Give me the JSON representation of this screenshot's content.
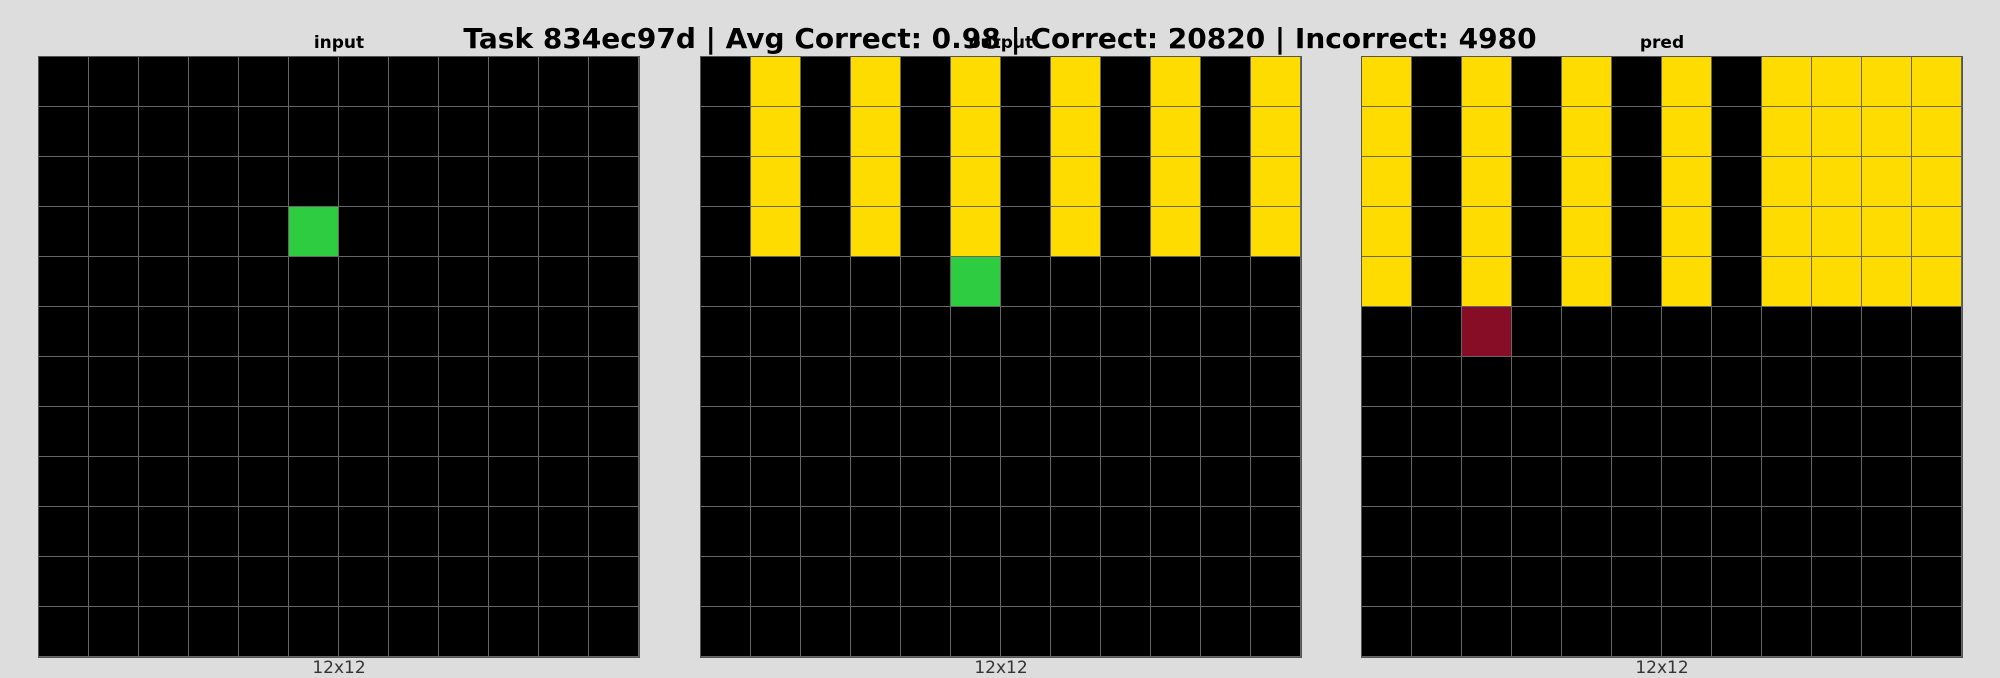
{
  "title": "Task 834ec97d | Avg Correct: 0.98 | Correct: 20820 | Incorrect: 4980",
  "palette": {
    "0": "#000000",
    "3": "#2ECC40",
    "4": "#FFDC00",
    "9": "#870C25"
  },
  "panels": [
    {
      "title": "input",
      "caption": "12x12",
      "grid": [
        [
          0,
          0,
          0,
          0,
          0,
          0,
          0,
          0,
          0,
          0,
          0,
          0
        ],
        [
          0,
          0,
          0,
          0,
          0,
          0,
          0,
          0,
          0,
          0,
          0,
          0
        ],
        [
          0,
          0,
          0,
          0,
          0,
          0,
          0,
          0,
          0,
          0,
          0,
          0
        ],
        [
          0,
          0,
          0,
          0,
          0,
          3,
          0,
          0,
          0,
          0,
          0,
          0
        ],
        [
          0,
          0,
          0,
          0,
          0,
          0,
          0,
          0,
          0,
          0,
          0,
          0
        ],
        [
          0,
          0,
          0,
          0,
          0,
          0,
          0,
          0,
          0,
          0,
          0,
          0
        ],
        [
          0,
          0,
          0,
          0,
          0,
          0,
          0,
          0,
          0,
          0,
          0,
          0
        ],
        [
          0,
          0,
          0,
          0,
          0,
          0,
          0,
          0,
          0,
          0,
          0,
          0
        ],
        [
          0,
          0,
          0,
          0,
          0,
          0,
          0,
          0,
          0,
          0,
          0,
          0
        ],
        [
          0,
          0,
          0,
          0,
          0,
          0,
          0,
          0,
          0,
          0,
          0,
          0
        ],
        [
          0,
          0,
          0,
          0,
          0,
          0,
          0,
          0,
          0,
          0,
          0,
          0
        ],
        [
          0,
          0,
          0,
          0,
          0,
          0,
          0,
          0,
          0,
          0,
          0,
          0
        ]
      ]
    },
    {
      "title": "output",
      "caption": "12x12",
      "grid": [
        [
          0,
          4,
          0,
          4,
          0,
          4,
          0,
          4,
          0,
          4,
          0,
          4
        ],
        [
          0,
          4,
          0,
          4,
          0,
          4,
          0,
          4,
          0,
          4,
          0,
          4
        ],
        [
          0,
          4,
          0,
          4,
          0,
          4,
          0,
          4,
          0,
          4,
          0,
          4
        ],
        [
          0,
          4,
          0,
          4,
          0,
          4,
          0,
          4,
          0,
          4,
          0,
          4
        ],
        [
          0,
          0,
          0,
          0,
          0,
          3,
          0,
          0,
          0,
          0,
          0,
          0
        ],
        [
          0,
          0,
          0,
          0,
          0,
          0,
          0,
          0,
          0,
          0,
          0,
          0
        ],
        [
          0,
          0,
          0,
          0,
          0,
          0,
          0,
          0,
          0,
          0,
          0,
          0
        ],
        [
          0,
          0,
          0,
          0,
          0,
          0,
          0,
          0,
          0,
          0,
          0,
          0
        ],
        [
          0,
          0,
          0,
          0,
          0,
          0,
          0,
          0,
          0,
          0,
          0,
          0
        ],
        [
          0,
          0,
          0,
          0,
          0,
          0,
          0,
          0,
          0,
          0,
          0,
          0
        ],
        [
          0,
          0,
          0,
          0,
          0,
          0,
          0,
          0,
          0,
          0,
          0,
          0
        ],
        [
          0,
          0,
          0,
          0,
          0,
          0,
          0,
          0,
          0,
          0,
          0,
          0
        ]
      ]
    },
    {
      "title": "pred",
      "caption": "12x12",
      "grid": [
        [
          4,
          0,
          4,
          0,
          4,
          0,
          4,
          0,
          4,
          4,
          4,
          4
        ],
        [
          4,
          0,
          4,
          0,
          4,
          0,
          4,
          0,
          4,
          4,
          4,
          4
        ],
        [
          4,
          0,
          4,
          0,
          4,
          0,
          4,
          0,
          4,
          4,
          4,
          4
        ],
        [
          4,
          0,
          4,
          0,
          4,
          0,
          4,
          0,
          4,
          4,
          4,
          4
        ],
        [
          4,
          0,
          4,
          0,
          4,
          0,
          4,
          0,
          4,
          4,
          4,
          4
        ],
        [
          0,
          0,
          9,
          0,
          0,
          0,
          0,
          0,
          0,
          0,
          0,
          0
        ],
        [
          0,
          0,
          0,
          0,
          0,
          0,
          0,
          0,
          0,
          0,
          0,
          0
        ],
        [
          0,
          0,
          0,
          0,
          0,
          0,
          0,
          0,
          0,
          0,
          0,
          0
        ],
        [
          0,
          0,
          0,
          0,
          0,
          0,
          0,
          0,
          0,
          0,
          0,
          0
        ],
        [
          0,
          0,
          0,
          0,
          0,
          0,
          0,
          0,
          0,
          0,
          0,
          0
        ],
        [
          0,
          0,
          0,
          0,
          0,
          0,
          0,
          0,
          0,
          0,
          0,
          0
        ],
        [
          0,
          0,
          0,
          0,
          0,
          0,
          0,
          0,
          0,
          0,
          0,
          0
        ]
      ]
    }
  ]
}
